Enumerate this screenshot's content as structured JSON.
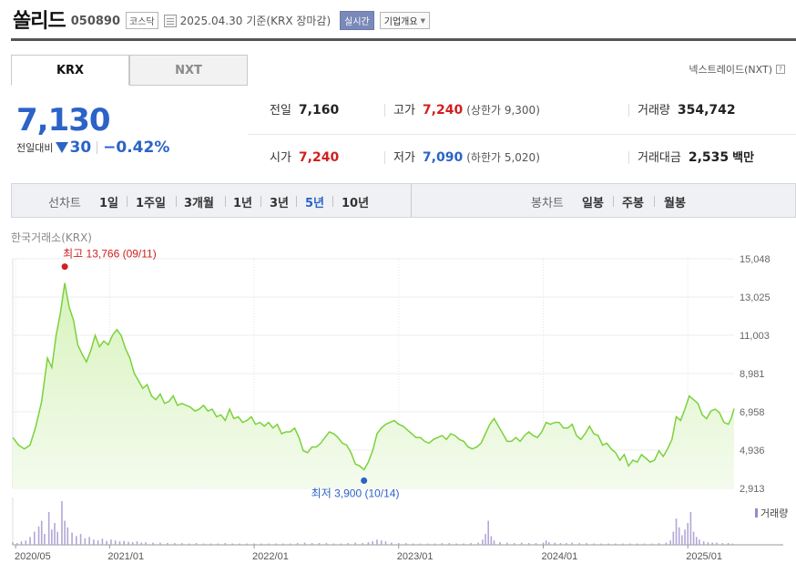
{
  "header": {
    "company_name": "쏠리드",
    "code": "050890",
    "market": "코스닥",
    "date": "2025.04.30",
    "basis": "기준(KRX 장마감)",
    "realtime_label": "실시간",
    "overview_label": "기업개요"
  },
  "tabs": [
    {
      "label": "KRX",
      "active": true
    },
    {
      "label": "NXT",
      "active": false
    }
  ],
  "nxt_link": "넥스트레이드(NXT)",
  "help_glyph": "?",
  "price": {
    "current": "7,130",
    "change_label": "전일대비",
    "change_amount": "30",
    "change_pct": "−0.42%",
    "direction": "down"
  },
  "stats": {
    "prev_close": {
      "label": "전일",
      "value": "7,160"
    },
    "high": {
      "label": "고가",
      "value": "7,240",
      "sub": "(상한가 9,300)"
    },
    "volume": {
      "label": "거래량",
      "value": "354,742"
    },
    "open": {
      "label": "시가",
      "value": "7,240"
    },
    "low": {
      "label": "저가",
      "value": "7,090",
      "sub": "(하한가 5,020)"
    },
    "trade_value": {
      "label": "거래대금",
      "value": "2,535",
      "unit": "백만"
    }
  },
  "toolbar": {
    "line_chart_label": "선차트",
    "periods": [
      "1일",
      "1주일",
      "3개월",
      "1년",
      "3년",
      "5년",
      "10년"
    ],
    "active_period": "5년",
    "candle_chart_label": "봉차트",
    "candle_periods": [
      "일봉",
      "주봉",
      "월봉"
    ]
  },
  "exchange_label": "한국거래소(KRX)",
  "colors": {
    "up": "#d02020",
    "down": "#2b63c7",
    "line": "#7ad23a",
    "fill": "#d8f3bd"
  },
  "chart_data": {
    "type": "area",
    "x_ticks": [
      "2020/05",
      "2021/01",
      "2022/01",
      "2023/01",
      "2024/01",
      "2025/01"
    ],
    "y_ticks": [
      "15,048",
      "13,025",
      "11,003",
      "8,981",
      "6,958",
      "4,936",
      "2,913"
    ],
    "ylim": [
      2913,
      15048
    ],
    "high_annotation": "최고 13,766 (09/11)",
    "low_annotation": "최저 3,900 (10/14)",
    "volume_label": "거래량",
    "series": [
      {
        "values": [
          [
            2020.33,
            5600
          ],
          [
            2020.37,
            5200
          ],
          [
            2020.41,
            5000
          ],
          [
            2020.45,
            5200
          ],
          [
            2020.49,
            6200
          ],
          [
            2020.53,
            7500
          ],
          [
            2020.57,
            9800
          ],
          [
            2020.6,
            9300
          ],
          [
            2020.63,
            11000
          ],
          [
            2020.66,
            12200
          ],
          [
            2020.69,
            13766
          ],
          [
            2020.72,
            12500
          ],
          [
            2020.75,
            11800
          ],
          [
            2020.78,
            10500
          ],
          [
            2020.81,
            10000
          ],
          [
            2020.84,
            9600
          ],
          [
            2020.87,
            10200
          ],
          [
            2020.9,
            11000
          ],
          [
            2020.93,
            10400
          ],
          [
            2020.96,
            10700
          ],
          [
            2020.99,
            10500
          ],
          [
            2021.02,
            11000
          ],
          [
            2021.05,
            11300
          ],
          [
            2021.08,
            11000
          ],
          [
            2021.11,
            10300
          ],
          [
            2021.14,
            9800
          ],
          [
            2021.17,
            9000
          ],
          [
            2021.2,
            8600
          ],
          [
            2021.23,
            8200
          ],
          [
            2021.26,
            8400
          ],
          [
            2021.29,
            7800
          ],
          [
            2021.32,
            7600
          ],
          [
            2021.35,
            7900
          ],
          [
            2021.38,
            7400
          ],
          [
            2021.41,
            7500
          ],
          [
            2021.44,
            7800
          ],
          [
            2021.47,
            7300
          ],
          [
            2021.5,
            7400
          ],
          [
            2021.53,
            7300
          ],
          [
            2021.56,
            7200
          ],
          [
            2021.59,
            7000
          ],
          [
            2021.62,
            7100
          ],
          [
            2021.65,
            7300
          ],
          [
            2021.68,
            7000
          ],
          [
            2021.71,
            7100
          ],
          [
            2021.74,
            6700
          ],
          [
            2021.77,
            6800
          ],
          [
            2021.8,
            6500
          ],
          [
            2021.83,
            7100
          ],
          [
            2021.86,
            6600
          ],
          [
            2021.89,
            6700
          ],
          [
            2021.92,
            6400
          ],
          [
            2021.95,
            6500
          ],
          [
            2021.98,
            6700
          ],
          [
            2022.01,
            6300
          ],
          [
            2022.04,
            6400
          ],
          [
            2022.07,
            6200
          ],
          [
            2022.1,
            6400
          ],
          [
            2022.13,
            6100
          ],
          [
            2022.16,
            6300
          ],
          [
            2022.19,
            5800
          ],
          [
            2022.22,
            5900
          ],
          [
            2022.25,
            5900
          ],
          [
            2022.28,
            6100
          ],
          [
            2022.31,
            5600
          ],
          [
            2022.34,
            4900
          ],
          [
            2022.37,
            4800
          ],
          [
            2022.4,
            5100
          ],
          [
            2022.43,
            5100
          ],
          [
            2022.46,
            5300
          ],
          [
            2022.49,
            5600
          ],
          [
            2022.52,
            5900
          ],
          [
            2022.55,
            5800
          ],
          [
            2022.58,
            5600
          ],
          [
            2022.61,
            5300
          ],
          [
            2022.64,
            5200
          ],
          [
            2022.67,
            4800
          ],
          [
            2022.7,
            4200
          ],
          [
            2022.73,
            4100
          ],
          [
            2022.76,
            3900
          ],
          [
            2022.79,
            4300
          ],
          [
            2022.82,
            4900
          ],
          [
            2022.85,
            5800
          ],
          [
            2022.88,
            6100
          ],
          [
            2022.91,
            6300
          ],
          [
            2022.94,
            6400
          ],
          [
            2022.97,
            6500
          ],
          [
            2023.0,
            6300
          ],
          [
            2023.03,
            6200
          ],
          [
            2023.06,
            6000
          ],
          [
            2023.09,
            5800
          ],
          [
            2023.12,
            5600
          ],
          [
            2023.15,
            5600
          ],
          [
            2023.18,
            5400
          ],
          [
            2023.21,
            5300
          ],
          [
            2023.24,
            5500
          ],
          [
            2023.27,
            5600
          ],
          [
            2023.3,
            5700
          ],
          [
            2023.33,
            5500
          ],
          [
            2023.36,
            5800
          ],
          [
            2023.39,
            5700
          ],
          [
            2023.42,
            5500
          ],
          [
            2023.45,
            5400
          ],
          [
            2023.48,
            5100
          ],
          [
            2023.51,
            5000
          ],
          [
            2023.54,
            5100
          ],
          [
            2023.57,
            5300
          ],
          [
            2023.6,
            5800
          ],
          [
            2023.63,
            6300
          ],
          [
            2023.66,
            6600
          ],
          [
            2023.69,
            6200
          ],
          [
            2023.72,
            5800
          ],
          [
            2023.75,
            5400
          ],
          [
            2023.78,
            5400
          ],
          [
            2023.81,
            5600
          ],
          [
            2023.84,
            5400
          ],
          [
            2023.87,
            5700
          ],
          [
            2023.9,
            5900
          ],
          [
            2023.93,
            5700
          ],
          [
            2023.96,
            5600
          ],
          [
            2023.99,
            5900
          ],
          [
            2024.02,
            6400
          ],
          [
            2024.05,
            6300
          ],
          [
            2024.08,
            6400
          ],
          [
            2024.11,
            6400
          ],
          [
            2024.14,
            6100
          ],
          [
            2024.17,
            6100
          ],
          [
            2024.2,
            6300
          ],
          [
            2024.23,
            5700
          ],
          [
            2024.26,
            5500
          ],
          [
            2024.29,
            5800
          ],
          [
            2024.32,
            6200
          ],
          [
            2024.35,
            5800
          ],
          [
            2024.38,
            5700
          ],
          [
            2024.41,
            5200
          ],
          [
            2024.44,
            5300
          ],
          [
            2024.47,
            5000
          ],
          [
            2024.5,
            4800
          ],
          [
            2024.53,
            4400
          ],
          [
            2024.56,
            4700
          ],
          [
            2024.59,
            4100
          ],
          [
            2024.62,
            4400
          ],
          [
            2024.65,
            4300
          ],
          [
            2024.68,
            4700
          ],
          [
            2024.71,
            4500
          ],
          [
            2024.74,
            4300
          ],
          [
            2024.77,
            4400
          ],
          [
            2024.8,
            4900
          ],
          [
            2024.83,
            4600
          ],
          [
            2024.86,
            5000
          ],
          [
            2024.89,
            5500
          ],
          [
            2024.92,
            6700
          ],
          [
            2024.95,
            6500
          ],
          [
            2024.98,
            7100
          ],
          [
            2025.01,
            7800
          ],
          [
            2025.04,
            7600
          ],
          [
            2025.07,
            7400
          ],
          [
            2025.1,
            6800
          ],
          [
            2025.13,
            6600
          ],
          [
            2025.16,
            7000
          ],
          [
            2025.19,
            7100
          ],
          [
            2025.22,
            6900
          ],
          [
            2025.25,
            6400
          ],
          [
            2025.28,
            6300
          ],
          [
            2025.3,
            6600
          ],
          [
            2025.32,
            7130
          ]
        ]
      }
    ],
    "volume": [
      [
        2020.33,
        0.06
      ],
      [
        2020.36,
        0.04
      ],
      [
        2020.39,
        0.08
      ],
      [
        2020.42,
        0.1
      ],
      [
        2020.45,
        0.18
      ],
      [
        2020.48,
        0.3
      ],
      [
        2020.51,
        0.42
      ],
      [
        2020.53,
        0.55
      ],
      [
        2020.55,
        0.25
      ],
      [
        2020.58,
        0.75
      ],
      [
        2020.6,
        0.35
      ],
      [
        2020.62,
        0.5
      ],
      [
        2020.64,
        0.3
      ],
      [
        2020.67,
        1.0
      ],
      [
        2020.69,
        0.55
      ],
      [
        2020.71,
        0.4
      ],
      [
        2020.74,
        0.28
      ],
      [
        2020.77,
        0.2
      ],
      [
        2020.8,
        0.25
      ],
      [
        2020.83,
        0.15
      ],
      [
        2020.86,
        0.18
      ],
      [
        2020.89,
        0.12
      ],
      [
        2020.92,
        0.1
      ],
      [
        2020.95,
        0.14
      ],
      [
        2020.98,
        0.09
      ],
      [
        2021.01,
        0.12
      ],
      [
        2021.04,
        0.1
      ],
      [
        2021.07,
        0.08
      ],
      [
        2021.1,
        0.09
      ],
      [
        2021.13,
        0.07
      ],
      [
        2021.16,
        0.06
      ],
      [
        2021.19,
        0.08
      ],
      [
        2021.22,
        0.05
      ],
      [
        2021.25,
        0.06
      ],
      [
        2021.3,
        0.05
      ],
      [
        2021.35,
        0.05
      ],
      [
        2021.4,
        0.04
      ],
      [
        2021.45,
        0.04
      ],
      [
        2021.5,
        0.04
      ],
      [
        2021.55,
        0.03
      ],
      [
        2021.6,
        0.04
      ],
      [
        2021.65,
        0.03
      ],
      [
        2021.7,
        0.03
      ],
      [
        2021.75,
        0.03
      ],
      [
        2021.8,
        0.04
      ],
      [
        2021.85,
        0.03
      ],
      [
        2021.9,
        0.03
      ],
      [
        2021.95,
        0.03
      ],
      [
        2022.0,
        0.03
      ],
      [
        2022.05,
        0.03
      ],
      [
        2022.1,
        0.03
      ],
      [
        2022.15,
        0.03
      ],
      [
        2022.2,
        0.03
      ],
      [
        2022.25,
        0.03
      ],
      [
        2022.3,
        0.04
      ],
      [
        2022.35,
        0.05
      ],
      [
        2022.4,
        0.04
      ],
      [
        2022.45,
        0.04
      ],
      [
        2022.5,
        0.04
      ],
      [
        2022.55,
        0.03
      ],
      [
        2022.6,
        0.03
      ],
      [
        2022.65,
        0.04
      ],
      [
        2022.7,
        0.05
      ],
      [
        2022.75,
        0.04
      ],
      [
        2022.79,
        0.06
      ],
      [
        2022.82,
        0.08
      ],
      [
        2022.85,
        0.12
      ],
      [
        2022.88,
        0.1
      ],
      [
        2022.91,
        0.08
      ],
      [
        2022.95,
        0.05
      ],
      [
        2023.0,
        0.04
      ],
      [
        2023.05,
        0.04
      ],
      [
        2023.1,
        0.03
      ],
      [
        2023.15,
        0.03
      ],
      [
        2023.2,
        0.03
      ],
      [
        2023.25,
        0.03
      ],
      [
        2023.3,
        0.04
      ],
      [
        2023.35,
        0.04
      ],
      [
        2023.4,
        0.03
      ],
      [
        2023.45,
        0.03
      ],
      [
        2023.5,
        0.04
      ],
      [
        2023.55,
        0.05
      ],
      [
        2023.58,
        0.12
      ],
      [
        2023.6,
        0.25
      ],
      [
        2023.62,
        0.55
      ],
      [
        2023.64,
        0.2
      ],
      [
        2023.66,
        0.1
      ],
      [
        2023.7,
        0.06
      ],
      [
        2023.75,
        0.05
      ],
      [
        2023.8,
        0.04
      ],
      [
        2023.85,
        0.05
      ],
      [
        2023.9,
        0.04
      ],
      [
        2023.95,
        0.04
      ],
      [
        2024.0,
        0.05
      ],
      [
        2024.02,
        0.1
      ],
      [
        2024.04,
        0.06
      ],
      [
        2024.08,
        0.05
      ],
      [
        2024.12,
        0.04
      ],
      [
        2024.16,
        0.04
      ],
      [
        2024.2,
        0.05
      ],
      [
        2024.25,
        0.04
      ],
      [
        2024.3,
        0.04
      ],
      [
        2024.35,
        0.03
      ],
      [
        2024.4,
        0.03
      ],
      [
        2024.45,
        0.03
      ],
      [
        2024.5,
        0.03
      ],
      [
        2024.55,
        0.03
      ],
      [
        2024.6,
        0.03
      ],
      [
        2024.65,
        0.03
      ],
      [
        2024.7,
        0.03
      ],
      [
        2024.75,
        0.03
      ],
      [
        2024.8,
        0.04
      ],
      [
        2024.85,
        0.05
      ],
      [
        2024.88,
        0.1
      ],
      [
        2024.9,
        0.3
      ],
      [
        2024.92,
        0.6
      ],
      [
        2024.94,
        0.4
      ],
      [
        2024.96,
        0.22
      ],
      [
        2024.98,
        0.35
      ],
      [
        2025.0,
        0.5
      ],
      [
        2025.02,
        0.75
      ],
      [
        2025.04,
        0.3
      ],
      [
        2025.06,
        0.18
      ],
      [
        2025.08,
        0.12
      ],
      [
        2025.11,
        0.08
      ],
      [
        2025.14,
        0.06
      ],
      [
        2025.17,
        0.05
      ],
      [
        2025.2,
        0.05
      ],
      [
        2025.24,
        0.04
      ],
      [
        2025.28,
        0.04
      ],
      [
        2025.31,
        0.03
      ]
    ]
  }
}
